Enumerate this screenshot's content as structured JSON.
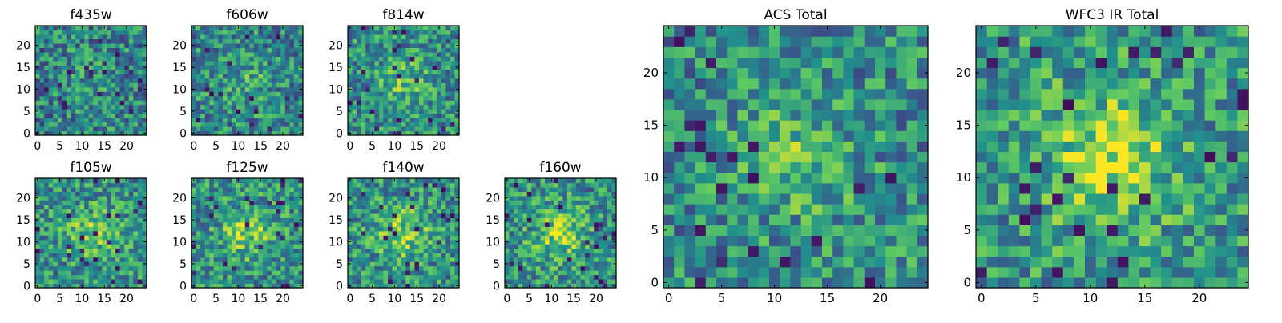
{
  "figure": {
    "colormap": [
      "#440154",
      "#3b528b",
      "#21918c",
      "#5ec962",
      "#fde725"
    ]
  },
  "chart_data": [
    {
      "type": "heatmap",
      "title": "f435w",
      "xlim": [
        0,
        24
      ],
      "ylim": [
        0,
        24
      ],
      "xticks": [
        0,
        5,
        10,
        15,
        20
      ],
      "yticks": [
        0,
        5,
        10,
        15,
        20
      ],
      "grid": false,
      "source_scale": 0.2
    },
    {
      "type": "heatmap",
      "title": "f606w",
      "xlim": [
        0,
        24
      ],
      "ylim": [
        0,
        24
      ],
      "xticks": [
        0,
        5,
        10,
        15,
        20
      ],
      "yticks": [
        0,
        5,
        10,
        15,
        20
      ],
      "grid": false,
      "source_scale": 0.3
    },
    {
      "type": "heatmap",
      "title": "f814w",
      "xlim": [
        0,
        24
      ],
      "ylim": [
        0,
        24
      ],
      "xticks": [
        0,
        5,
        10,
        15,
        20
      ],
      "yticks": [
        0,
        5,
        10,
        15,
        20
      ],
      "grid": false,
      "source_scale": 0.45
    },
    {
      "type": "heatmap",
      "title": "f105w",
      "xlim": [
        0,
        24
      ],
      "ylim": [
        0,
        24
      ],
      "xticks": [
        0,
        5,
        10,
        15,
        20
      ],
      "yticks": [
        0,
        5,
        10,
        15,
        20
      ],
      "grid": false,
      "source_scale": 0.6
    },
    {
      "type": "heatmap",
      "title": "f125w",
      "xlim": [
        0,
        24
      ],
      "ylim": [
        0,
        24
      ],
      "xticks": [
        0,
        5,
        10,
        15,
        20
      ],
      "yticks": [
        0,
        5,
        10,
        15,
        20
      ],
      "grid": false,
      "source_scale": 0.65
    },
    {
      "type": "heatmap",
      "title": "f140w",
      "xlim": [
        0,
        24
      ],
      "ylim": [
        0,
        24
      ],
      "xticks": [
        0,
        5,
        10,
        15,
        20
      ],
      "yticks": [
        0,
        5,
        10,
        15,
        20
      ],
      "grid": false,
      "source_scale": 0.65
    },
    {
      "type": "heatmap",
      "title": "f160w",
      "xlim": [
        0,
        24
      ],
      "ylim": [
        0,
        24
      ],
      "xticks": [
        0,
        5,
        10,
        15,
        20
      ],
      "yticks": [
        0,
        5,
        10,
        15,
        20
      ],
      "grid": false,
      "source_scale": 0.7
    },
    {
      "type": "heatmap",
      "title": "ACS Total",
      "xlim": [
        0,
        24
      ],
      "ylim": [
        0,
        24
      ],
      "xticks": [
        0,
        5,
        10,
        15,
        20
      ],
      "yticks": [
        0,
        5,
        10,
        15,
        20
      ],
      "grid": false,
      "source_scale": 0.45
    },
    {
      "type": "heatmap",
      "title": "WFC3 IR Total",
      "xlim": [
        0,
        24
      ],
      "ylim": [
        0,
        24
      ],
      "xticks": [
        0,
        5,
        10,
        15,
        20
      ],
      "yticks": [
        0,
        5,
        10,
        15,
        20
      ],
      "grid": false,
      "source_scale": 0.85
    }
  ]
}
